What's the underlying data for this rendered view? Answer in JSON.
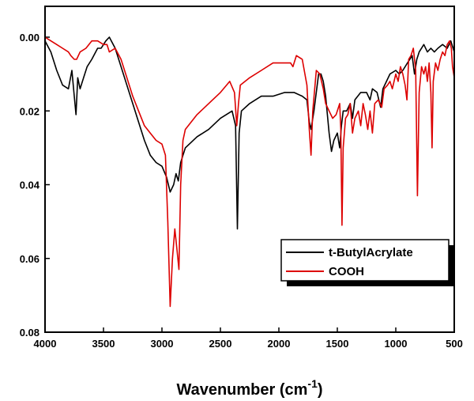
{
  "chart_data": {
    "type": "line",
    "title": "",
    "xlabel": "Wavenumber (cm",
    "xlabel_sup": "-1",
    "xlabel_close": ")",
    "ylabel": "",
    "xlim": [
      4000,
      500
    ],
    "ylim": [
      0.0,
      0.08
    ],
    "x_ticks": [
      "4000",
      "3500",
      "3000",
      "2500",
      "2000",
      "1500",
      "1000",
      "500"
    ],
    "y_ticks": [
      "0.00",
      "0.02",
      "0.04",
      "0.06",
      "0.08"
    ],
    "y_inverted": true,
    "grid": false,
    "legend_position": "bottom-right",
    "series": [
      {
        "name": "t-ButylAcrylate",
        "color": "#000000",
        "points": [
          [
            4000,
            0.001
          ],
          [
            3950,
            0.004
          ],
          [
            3900,
            0.009
          ],
          [
            3850,
            0.013
          ],
          [
            3800,
            0.014
          ],
          [
            3770,
            0.009
          ],
          [
            3750,
            0.016
          ],
          [
            3735,
            0.021
          ],
          [
            3720,
            0.011
          ],
          [
            3700,
            0.014
          ],
          [
            3670,
            0.011
          ],
          [
            3640,
            0.008
          ],
          [
            3600,
            0.006
          ],
          [
            3550,
            0.003
          ],
          [
            3520,
            0.003
          ],
          [
            3480,
            0.001
          ],
          [
            3450,
            0.0
          ],
          [
            3400,
            0.003
          ],
          [
            3350,
            0.008
          ],
          [
            3300,
            0.013
          ],
          [
            3250,
            0.018
          ],
          [
            3200,
            0.023
          ],
          [
            3150,
            0.028
          ],
          [
            3100,
            0.032
          ],
          [
            3050,
            0.034
          ],
          [
            3000,
            0.035
          ],
          [
            2960,
            0.038
          ],
          [
            2930,
            0.042
          ],
          [
            2900,
            0.04
          ],
          [
            2880,
            0.037
          ],
          [
            2860,
            0.039
          ],
          [
            2840,
            0.034
          ],
          [
            2800,
            0.03
          ],
          [
            2700,
            0.027
          ],
          [
            2600,
            0.025
          ],
          [
            2500,
            0.022
          ],
          [
            2400,
            0.02
          ],
          [
            2370,
            0.024
          ],
          [
            2355,
            0.052
          ],
          [
            2340,
            0.026
          ],
          [
            2320,
            0.02
          ],
          [
            2250,
            0.018
          ],
          [
            2150,
            0.016
          ],
          [
            2050,
            0.016
          ],
          [
            1950,
            0.015
          ],
          [
            1870,
            0.015
          ],
          [
            1800,
            0.016
          ],
          [
            1760,
            0.017
          ],
          [
            1740,
            0.023
          ],
          [
            1725,
            0.025
          ],
          [
            1700,
            0.02
          ],
          [
            1660,
            0.01
          ],
          [
            1640,
            0.01
          ],
          [
            1620,
            0.012
          ],
          [
            1600,
            0.016
          ],
          [
            1570,
            0.026
          ],
          [
            1550,
            0.031
          ],
          [
            1530,
            0.028
          ],
          [
            1500,
            0.026
          ],
          [
            1480,
            0.03
          ],
          [
            1465,
            0.024
          ],
          [
            1450,
            0.02
          ],
          [
            1420,
            0.02
          ],
          [
            1390,
            0.018
          ],
          [
            1370,
            0.022
          ],
          [
            1350,
            0.017
          ],
          [
            1300,
            0.015
          ],
          [
            1250,
            0.015
          ],
          [
            1220,
            0.017
          ],
          [
            1200,
            0.014
          ],
          [
            1160,
            0.015
          ],
          [
            1130,
            0.019
          ],
          [
            1110,
            0.014
          ],
          [
            1080,
            0.012
          ],
          [
            1050,
            0.01
          ],
          [
            1000,
            0.009
          ],
          [
            970,
            0.01
          ],
          [
            940,
            0.009
          ],
          [
            900,
            0.007
          ],
          [
            860,
            0.005
          ],
          [
            840,
            0.01
          ],
          [
            820,
            0.006
          ],
          [
            800,
            0.004
          ],
          [
            760,
            0.002
          ],
          [
            730,
            0.004
          ],
          [
            700,
            0.003
          ],
          [
            670,
            0.004
          ],
          [
            640,
            0.003
          ],
          [
            600,
            0.002
          ],
          [
            560,
            0.003
          ],
          [
            530,
            0.001
          ],
          [
            510,
            0.003
          ],
          [
            500,
            0.004
          ]
        ]
      },
      {
        "name": "COOH",
        "color": "#dd0000",
        "points": [
          [
            4000,
            0.0
          ],
          [
            3950,
            0.001
          ],
          [
            3900,
            0.002
          ],
          [
            3850,
            0.003
          ],
          [
            3800,
            0.004
          ],
          [
            3780,
            0.005
          ],
          [
            3750,
            0.006
          ],
          [
            3730,
            0.006
          ],
          [
            3700,
            0.004
          ],
          [
            3650,
            0.003
          ],
          [
            3600,
            0.001
          ],
          [
            3550,
            0.001
          ],
          [
            3500,
            0.002
          ],
          [
            3470,
            0.002
          ],
          [
            3450,
            0.004
          ],
          [
            3400,
            0.003
          ],
          [
            3350,
            0.006
          ],
          [
            3300,
            0.011
          ],
          [
            3250,
            0.016
          ],
          [
            3200,
            0.02
          ],
          [
            3150,
            0.024
          ],
          [
            3100,
            0.026
          ],
          [
            3050,
            0.028
          ],
          [
            3000,
            0.029
          ],
          [
            2970,
            0.032
          ],
          [
            2950,
            0.05
          ],
          [
            2930,
            0.073
          ],
          [
            2910,
            0.06
          ],
          [
            2890,
            0.052
          ],
          [
            2870,
            0.058
          ],
          [
            2855,
            0.063
          ],
          [
            2840,
            0.04
          ],
          [
            2820,
            0.028
          ],
          [
            2800,
            0.025
          ],
          [
            2700,
            0.021
          ],
          [
            2600,
            0.018
          ],
          [
            2500,
            0.015
          ],
          [
            2420,
            0.012
          ],
          [
            2380,
            0.015
          ],
          [
            2360,
            0.024
          ],
          [
            2345,
            0.018
          ],
          [
            2330,
            0.013
          ],
          [
            2250,
            0.011
          ],
          [
            2150,
            0.009
          ],
          [
            2050,
            0.007
          ],
          [
            1950,
            0.007
          ],
          [
            1900,
            0.007
          ],
          [
            1880,
            0.008
          ],
          [
            1850,
            0.005
          ],
          [
            1800,
            0.006
          ],
          [
            1760,
            0.013
          ],
          [
            1740,
            0.025
          ],
          [
            1725,
            0.032
          ],
          [
            1710,
            0.02
          ],
          [
            1680,
            0.009
          ],
          [
            1650,
            0.01
          ],
          [
            1620,
            0.014
          ],
          [
            1600,
            0.018
          ],
          [
            1570,
            0.02
          ],
          [
            1540,
            0.022
          ],
          [
            1510,
            0.021
          ],
          [
            1480,
            0.018
          ],
          [
            1470,
            0.025
          ],
          [
            1460,
            0.051
          ],
          [
            1450,
            0.03
          ],
          [
            1430,
            0.022
          ],
          [
            1410,
            0.021
          ],
          [
            1390,
            0.018
          ],
          [
            1370,
            0.026
          ],
          [
            1350,
            0.022
          ],
          [
            1320,
            0.02
          ],
          [
            1300,
            0.024
          ],
          [
            1280,
            0.018
          ],
          [
            1260,
            0.021
          ],
          [
            1240,
            0.025
          ],
          [
            1220,
            0.02
          ],
          [
            1200,
            0.026
          ],
          [
            1180,
            0.018
          ],
          [
            1150,
            0.017
          ],
          [
            1120,
            0.019
          ],
          [
            1100,
            0.014
          ],
          [
            1070,
            0.013
          ],
          [
            1050,
            0.012
          ],
          [
            1030,
            0.014
          ],
          [
            1000,
            0.01
          ],
          [
            980,
            0.012
          ],
          [
            960,
            0.008
          ],
          [
            940,
            0.01
          ],
          [
            920,
            0.013
          ],
          [
            905,
            0.017
          ],
          [
            890,
            0.006
          ],
          [
            870,
            0.005
          ],
          [
            850,
            0.003
          ],
          [
            830,
            0.009
          ],
          [
            815,
            0.043
          ],
          [
            800,
            0.015
          ],
          [
            780,
            0.008
          ],
          [
            760,
            0.01
          ],
          [
            745,
            0.008
          ],
          [
            730,
            0.012
          ],
          [
            715,
            0.007
          ],
          [
            700,
            0.015
          ],
          [
            690,
            0.03
          ],
          [
            680,
            0.012
          ],
          [
            660,
            0.007
          ],
          [
            640,
            0.009
          ],
          [
            620,
            0.006
          ],
          [
            600,
            0.004
          ],
          [
            580,
            0.005
          ],
          [
            560,
            0.002
          ],
          [
            540,
            0.001
          ],
          [
            525,
            0.003
          ],
          [
            515,
            0.008
          ],
          [
            505,
            0.01
          ],
          [
            500,
            0.011
          ]
        ]
      }
    ]
  }
}
